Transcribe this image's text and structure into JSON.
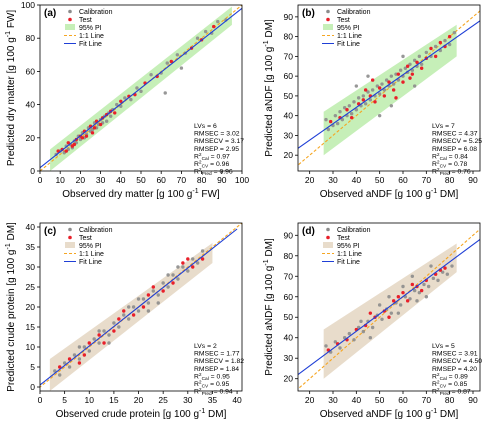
{
  "chart_data": [
    {
      "panel_label": "(a)",
      "type": "scatter",
      "xlabel": "Observed dry matter [g 100 g",
      "xlabel_sup": "-1",
      "xlabel_tail": " FW]",
      "ylabel": "Predicted dry matter [g 100 g",
      "ylabel_sup": "-1",
      "ylabel_tail": " FW]",
      "xlim": [
        0,
        100
      ],
      "ylim": [
        0,
        100
      ],
      "xticks": [
        0,
        10,
        20,
        30,
        40,
        50,
        60,
        70,
        80,
        90,
        100
      ],
      "yticks": [
        0,
        20,
        40,
        60,
        80,
        100
      ],
      "band_color": "#c6efb8",
      "legend": [
        "Calibration",
        "Test",
        "95% PI",
        "1:1 Line",
        "Fit Line"
      ],
      "stats": [
        "LVs = 6",
        "RMSEC = 3.02",
        "RMSECV = 3.17",
        "RMSEP = 2.95"
      ],
      "r2": [
        {
          "sub": "Cal",
          "value": " = 0.97"
        },
        {
          "sub": "CV",
          "value": " = 0.96"
        },
        {
          "sub": "Pred",
          "value": " = 0.96"
        }
      ],
      "pi_band": {
        "x": [
          5,
          95
        ],
        "lower": [
          0,
          88
        ],
        "upper": [
          13,
          99
        ]
      },
      "fit_line": {
        "x": [
          0,
          100
        ],
        "y": [
          2,
          98
        ]
      },
      "calibration": [
        [
          8,
          10
        ],
        [
          10,
          12
        ],
        [
          12,
          11
        ],
        [
          13,
          15
        ],
        [
          14,
          13
        ],
        [
          15,
          16
        ],
        [
          16,
          14
        ],
        [
          17,
          18
        ],
        [
          18,
          17
        ],
        [
          19,
          21
        ],
        [
          20,
          19
        ],
        [
          21,
          23
        ],
        [
          22,
          20
        ],
        [
          23,
          22
        ],
        [
          24,
          26
        ],
        [
          25,
          24
        ],
        [
          26,
          25
        ],
        [
          27,
          29
        ],
        [
          28,
          26
        ],
        [
          29,
          28
        ],
        [
          30,
          31
        ],
        [
          31,
          29
        ],
        [
          32,
          33
        ],
        [
          33,
          30
        ],
        [
          34,
          35
        ],
        [
          35,
          33
        ],
        [
          36,
          37
        ],
        [
          38,
          40
        ],
        [
          40,
          39
        ],
        [
          42,
          44
        ],
        [
          45,
          43
        ],
        [
          48,
          50
        ],
        [
          50,
          48
        ],
        [
          55,
          58
        ],
        [
          60,
          59
        ],
        [
          63,
          65
        ],
        [
          68,
          70
        ],
        [
          72,
          71
        ],
        [
          78,
          80
        ],
        [
          82,
          84
        ],
        [
          85,
          83
        ],
        [
          88,
          90
        ],
        [
          62,
          47
        ],
        [
          70,
          62
        ],
        [
          92,
          91
        ]
      ],
      "test": [
        [
          9,
          12
        ],
        [
          11,
          13
        ],
        [
          13,
          12
        ],
        [
          14,
          17
        ],
        [
          16,
          15
        ],
        [
          17,
          16
        ],
        [
          18,
          19
        ],
        [
          20,
          21
        ],
        [
          21,
          20
        ],
        [
          22,
          24
        ],
        [
          23,
          21
        ],
        [
          25,
          27
        ],
        [
          26,
          23
        ],
        [
          27,
          26
        ],
        [
          28,
          30
        ],
        [
          30,
          28
        ],
        [
          31,
          32
        ],
        [
          33,
          34
        ],
        [
          35,
          36
        ],
        [
          37,
          35
        ],
        [
          40,
          42
        ],
        [
          44,
          45
        ],
        [
          47,
          46
        ],
        [
          52,
          53
        ],
        [
          58,
          57
        ],
        [
          65,
          66
        ],
        [
          75,
          74
        ],
        [
          80,
          79
        ],
        [
          86,
          87
        ]
      ]
    },
    {
      "panel_label": "(b)",
      "type": "scatter",
      "xlabel": "Observed aNDF [g 100 g",
      "xlabel_sup": "-1",
      "xlabel_tail": " DM]",
      "ylabel": "Predicted aNDF [g 100 g",
      "ylabel_sup": "-1",
      "ylabel_tail": " DM]",
      "xlim": [
        15,
        93
      ],
      "ylim": [
        12,
        96
      ],
      "xticks": [
        20,
        30,
        40,
        50,
        60,
        70,
        80,
        90
      ],
      "yticks": [
        20,
        30,
        40,
        50,
        60,
        70,
        80,
        90
      ],
      "band_color": "#c6efb8",
      "legend": [
        "Calibration",
        "Test",
        "95% PI",
        "1:1 Line",
        "Fit Line"
      ],
      "stats": [
        "LVs = 7",
        "RMSEC = 4.37",
        "RMSECV = 5.25",
        "RMSEP = 6.08"
      ],
      "r2": [
        {
          "sub": "Cal",
          "value": " = 0.84"
        },
        {
          "sub": "CV",
          "value": " = 0.78"
        },
        {
          "sub": "Pred",
          "value": " = 0.76"
        }
      ],
      "pi_band": {
        "x": [
          26,
          83
        ],
        "lower": [
          20,
          70
        ],
        "upper": [
          42,
          86
        ]
      },
      "fit_line": {
        "x": [
          15,
          93
        ],
        "y": [
          23.5,
          88
        ]
      },
      "calibration": [
        [
          27,
          38
        ],
        [
          28,
          33
        ],
        [
          30,
          35
        ],
        [
          31,
          40
        ],
        [
          32,
          36
        ],
        [
          33,
          42
        ],
        [
          34,
          38
        ],
        [
          35,
          44
        ],
        [
          36,
          40
        ],
        [
          37,
          45
        ],
        [
          38,
          41
        ],
        [
          39,
          47
        ],
        [
          40,
          43
        ],
        [
          41,
          49
        ],
        [
          42,
          45
        ],
        [
          43,
          50
        ],
        [
          44,
          46
        ],
        [
          45,
          52
        ],
        [
          46,
          48
        ],
        [
          47,
          53
        ],
        [
          48,
          50
        ],
        [
          49,
          55
        ],
        [
          50,
          51
        ],
        [
          51,
          56
        ],
        [
          52,
          53
        ],
        [
          53,
          58
        ],
        [
          54,
          55
        ],
        [
          55,
          60
        ],
        [
          56,
          56
        ],
        [
          57,
          61
        ],
        [
          58,
          58
        ],
        [
          59,
          63
        ],
        [
          60,
          60
        ],
        [
          61,
          64
        ],
        [
          62,
          62
        ],
        [
          63,
          66
        ],
        [
          64,
          63
        ],
        [
          65,
          68
        ],
        [
          66,
          65
        ],
        [
          67,
          70
        ],
        [
          68,
          66
        ],
        [
          70,
          72
        ],
        [
          72,
          70
        ],
        [
          74,
          75
        ],
        [
          76,
          73
        ],
        [
          78,
          78
        ],
        [
          80,
          76
        ],
        [
          82,
          82
        ],
        [
          45,
          60
        ],
        [
          55,
          45
        ],
        [
          60,
          70
        ],
        [
          50,
          40
        ],
        [
          65,
          55
        ],
        [
          40,
          55
        ]
      ],
      "test": [
        [
          29,
          37
        ],
        [
          33,
          39
        ],
        [
          36,
          43
        ],
        [
          38,
          39
        ],
        [
          41,
          46
        ],
        [
          43,
          48
        ],
        [
          46,
          50
        ],
        [
          48,
          47
        ],
        [
          50,
          54
        ],
        [
          52,
          50
        ],
        [
          54,
          57
        ],
        [
          56,
          53
        ],
        [
          58,
          61
        ],
        [
          60,
          57
        ],
        [
          62,
          65
        ],
        [
          64,
          61
        ],
        [
          66,
          67
        ],
        [
          68,
          64
        ],
        [
          70,
          69
        ],
        [
          72,
          74
        ],
        [
          74,
          70
        ],
        [
          76,
          77
        ],
        [
          78,
          75
        ],
        [
          80,
          80
        ],
        [
          47,
          58
        ],
        [
          57,
          49
        ],
        [
          63,
          59
        ],
        [
          44,
          53
        ]
      ]
    },
    {
      "panel_label": "(c)",
      "type": "scatter",
      "xlabel": "Observed crude protein [g 100 g",
      "xlabel_sup": "-1",
      "xlabel_tail": " DM]",
      "ylabel": "Predicted crude protein [g 100 g",
      "ylabel_sup": "-1",
      "ylabel_tail": " DM]",
      "xlim": [
        0,
        41
      ],
      "ylim": [
        -1,
        41
      ],
      "xticks": [
        0,
        5,
        10,
        15,
        20,
        25,
        30,
        35,
        40
      ],
      "yticks": [
        0,
        5,
        10,
        15,
        20,
        25,
        30,
        35,
        40
      ],
      "band_color": "#e8dccb",
      "legend": [
        "Calibration",
        "Test",
        "95% PI",
        "1:1 Line",
        "Fit Line"
      ],
      "stats": [
        "LVs = 2",
        "RMSEC = 1.77",
        "RMSECV = 1.82",
        "RMSEP = 1.84"
      ],
      "r2": [
        {
          "sub": "Cal",
          "value": " = 0.95"
        },
        {
          "sub": "CV",
          "value": " = 0.95"
        },
        {
          "sub": "Pred",
          "value": " = 0.94"
        }
      ],
      "pi_band": {
        "x": [
          2,
          35
        ],
        "lower": [
          -1,
          31
        ],
        "upper": [
          7,
          36
        ]
      },
      "fit_line": {
        "x": [
          0,
          40
        ],
        "y": [
          0.5,
          39.5
        ]
      },
      "calibration": [
        [
          3,
          4
        ],
        [
          4,
          3
        ],
        [
          5,
          6
        ],
        [
          6,
          5
        ],
        [
          7,
          8
        ],
        [
          8,
          7
        ],
        [
          9,
          10
        ],
        [
          10,
          9
        ],
        [
          11,
          12
        ],
        [
          12,
          11
        ],
        [
          13,
          14
        ],
        [
          14,
          13
        ],
        [
          15,
          16
        ],
        [
          16,
          15
        ],
        [
          17,
          18
        ],
        [
          18,
          17
        ],
        [
          19,
          20
        ],
        [
          20,
          19
        ],
        [
          21,
          22
        ],
        [
          22,
          21
        ],
        [
          23,
          24
        ],
        [
          24,
          23
        ],
        [
          25,
          26
        ],
        [
          26,
          25
        ],
        [
          27,
          28
        ],
        [
          28,
          27
        ],
        [
          29,
          30
        ],
        [
          30,
          29
        ],
        [
          31,
          32
        ],
        [
          32,
          31
        ],
        [
          33,
          34
        ],
        [
          12,
          14
        ],
        [
          18,
          20
        ],
        [
          22,
          19
        ],
        [
          26,
          28
        ],
        [
          14,
          11
        ],
        [
          20,
          22
        ],
        [
          8,
          10
        ],
        [
          28,
          30
        ],
        [
          24,
          21
        ]
      ],
      "test": [
        [
          4,
          5
        ],
        [
          6,
          7
        ],
        [
          8,
          6
        ],
        [
          10,
          11
        ],
        [
          12,
          13
        ],
        [
          13,
          11
        ],
        [
          15,
          14
        ],
        [
          17,
          19
        ],
        [
          19,
          18
        ],
        [
          21,
          20
        ],
        [
          23,
          25
        ],
        [
          25,
          24
        ],
        [
          27,
          26
        ],
        [
          29,
          31
        ],
        [
          31,
          30
        ],
        [
          33,
          32
        ],
        [
          16,
          17
        ],
        [
          22,
          23
        ],
        [
          9,
          8
        ],
        [
          30,
          32
        ]
      ]
    },
    {
      "panel_label": "(d)",
      "type": "scatter",
      "xlabel": "Observed aNDF [g 100 g",
      "xlabel_sup": "-1",
      "xlabel_tail": " DM]",
      "ylabel": "Predicted aNDF [g 100 g",
      "ylabel_sup": "-1",
      "ylabel_tail": " DM]",
      "xlim": [
        15,
        93
      ],
      "ylim": [
        14,
        96
      ],
      "xticks": [
        20,
        30,
        40,
        50,
        60,
        70,
        80,
        90
      ],
      "yticks": [
        20,
        30,
        40,
        50,
        60,
        70,
        80,
        90
      ],
      "band_color": "#e8dccb",
      "legend": [
        "Calibration",
        "Test",
        "95% PI",
        "1:1 Line",
        "Fit Line"
      ],
      "stats": [
        "LVs = 5",
        "RMSEC = 3.91",
        "RMSECV = 4.50",
        "RMSEP = 4.20"
      ],
      "r2": [
        {
          "sub": "Cal",
          "value": " = 0.89"
        },
        {
          "sub": "CV",
          "value": " = 0.85"
        },
        {
          "sub": "Pred",
          "value": " = 0.87"
        }
      ],
      "pi_band": {
        "x": [
          26,
          83
        ],
        "lower": [
          20,
          72
        ],
        "upper": [
          44,
          86
        ]
      },
      "fit_line": {
        "x": [
          15,
          93
        ],
        "y": [
          22,
          88
        ]
      },
      "calibration": [
        [
          27,
          36
        ],
        [
          29,
          33
        ],
        [
          31,
          38
        ],
        [
          33,
          35
        ],
        [
          35,
          40
        ],
        [
          37,
          42
        ],
        [
          39,
          39
        ],
        [
          41,
          45
        ],
        [
          43,
          43
        ],
        [
          45,
          48
        ],
        [
          47,
          45
        ],
        [
          49,
          51
        ],
        [
          51,
          49
        ],
        [
          53,
          54
        ],
        [
          55,
          52
        ],
        [
          57,
          57
        ],
        [
          59,
          56
        ],
        [
          61,
          60
        ],
        [
          63,
          59
        ],
        [
          65,
          63
        ],
        [
          67,
          62
        ],
        [
          69,
          66
        ],
        [
          71,
          65
        ],
        [
          73,
          69
        ],
        [
          75,
          68
        ],
        [
          77,
          72
        ],
        [
          79,
          71
        ],
        [
          81,
          75
        ],
        [
          42,
          48
        ],
        [
          50,
          56
        ],
        [
          58,
          52
        ],
        [
          64,
          70
        ],
        [
          70,
          60
        ],
        [
          46,
          40
        ],
        [
          54,
          60
        ],
        [
          60,
          65
        ],
        [
          66,
          58
        ],
        [
          72,
          75
        ]
      ],
      "test": [
        [
          28,
          34
        ],
        [
          32,
          37
        ],
        [
          36,
          39
        ],
        [
          40,
          44
        ],
        [
          44,
          46
        ],
        [
          48,
          50
        ],
        [
          52,
          53
        ],
        [
          56,
          58
        ],
        [
          60,
          62
        ],
        [
          62,
          58
        ],
        [
          66,
          65
        ],
        [
          70,
          68
        ],
        [
          74,
          71
        ],
        [
          78,
          74
        ],
        [
          46,
          52
        ],
        [
          54,
          50
        ],
        [
          58,
          60
        ],
        [
          64,
          66
        ],
        [
          68,
          63
        ],
        [
          76,
          73
        ]
      ]
    }
  ]
}
